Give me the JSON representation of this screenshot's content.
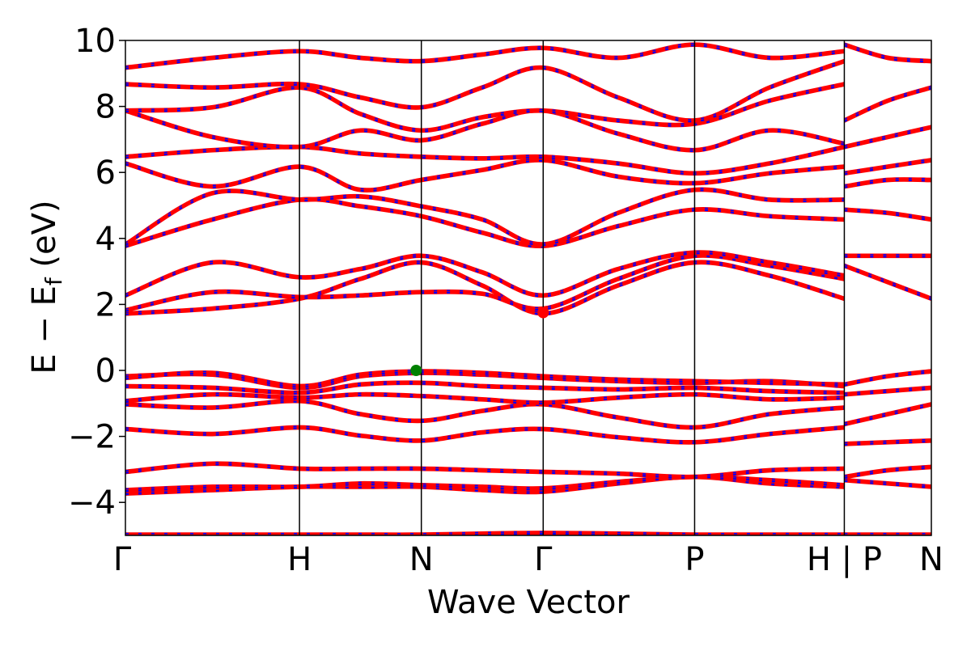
{
  "chart_data": {
    "type": "line",
    "title": "",
    "xlabel": "Wave Vector",
    "ylabel_main": "E − E",
    "ylabel_sub": "f",
    "ylabel_unit": " (eV)",
    "ylim": [
      -5,
      10
    ],
    "yticks": [
      -4,
      -2,
      0,
      2,
      4,
      6,
      8,
      10
    ],
    "ytick_labels": [
      "−4",
      "−2",
      "0",
      "2",
      "4",
      "6",
      "8",
      "10"
    ],
    "k_path": {
      "points": [
        0,
        1,
        1.7,
        2.4,
        3.27,
        4.13,
        4.63
      ],
      "labels": [
        "Γ",
        "H",
        "N",
        "Γ",
        "P",
        "H | P",
        "N"
      ],
      "segment_breaks": [
        4.13
      ]
    },
    "grid": false,
    "band_colors": {
      "line": "#ff0000",
      "overlay_dash": "#0000ff"
    },
    "markers": [
      {
        "name": "VBM",
        "x": 1.67,
        "y": 0.0,
        "color": "#008000"
      },
      {
        "name": "CBM",
        "x": 2.4,
        "y": 1.75,
        "color": "#ff0000"
      }
    ],
    "bands": [
      {
        "x": [
          0,
          0.5,
          1,
          1.35,
          1.7,
          2.05,
          2.4,
          2.83,
          3.27,
          3.7,
          4.13
        ],
        "y": [
          -4.95,
          -4.95,
          -4.95,
          -4.95,
          -4.95,
          -4.92,
          -4.9,
          -4.92,
          -4.95,
          -4.95,
          -4.95
        ]
      },
      {
        "x": [
          0,
          0.5,
          1,
          1.35,
          1.7,
          2.05,
          2.4,
          2.83,
          3.27,
          3.7,
          4.13
        ],
        "y": [
          -3.7,
          -3.6,
          -3.5,
          -3.5,
          -3.5,
          -3.6,
          -3.65,
          -3.4,
          -3.2,
          -3.4,
          -3.5
        ]
      },
      {
        "x": [
          0,
          0.5,
          1,
          1.35,
          1.7,
          2.05,
          2.4,
          2.83,
          3.27,
          3.7,
          4.13
        ],
        "y": [
          -3.6,
          -3.5,
          -3.5,
          -3.4,
          -3.45,
          -3.5,
          -3.55,
          -3.35,
          -3.2,
          -3.3,
          -3.45
        ]
      },
      {
        "x": [
          0,
          0.5,
          1,
          1.35,
          1.7,
          2.05,
          2.4,
          2.83,
          3.27,
          3.7,
          4.13
        ],
        "y": [
          -3.05,
          -2.8,
          -2.95,
          -2.95,
          -2.95,
          -3.0,
          -3.05,
          -3.1,
          -3.2,
          -3.0,
          -2.95
        ]
      },
      {
        "x": [
          0,
          0.5,
          1,
          1.35,
          1.7,
          2.05,
          2.4,
          2.83,
          3.27,
          3.7,
          4.13
        ],
        "y": [
          -1.75,
          -1.9,
          -1.7,
          -1.95,
          -2.1,
          -1.85,
          -1.75,
          -2.0,
          -2.15,
          -1.9,
          -1.7
        ]
      },
      {
        "x": [
          0,
          0.5,
          1,
          1.35,
          1.7,
          2.05,
          2.4,
          2.83,
          3.27,
          3.7,
          4.13
        ],
        "y": [
          -1.0,
          -1.1,
          -0.9,
          -1.3,
          -1.5,
          -1.2,
          -1.0,
          -1.4,
          -1.7,
          -1.3,
          -1.1
        ]
      },
      {
        "x": [
          0,
          0.5,
          1,
          1.35,
          1.7,
          2.05,
          2.4,
          2.83,
          3.27,
          3.7,
          4.13
        ],
        "y": [
          -0.9,
          -0.7,
          -0.8,
          -0.7,
          -0.75,
          -0.85,
          -0.95,
          -0.8,
          -0.7,
          -0.85,
          -0.8
        ]
      },
      {
        "x": [
          0,
          0.5,
          1,
          1.35,
          1.7,
          2.05,
          2.4,
          2.83,
          3.27,
          3.7,
          4.13
        ],
        "y": [
          -0.45,
          -0.5,
          -0.65,
          -0.4,
          -0.35,
          -0.45,
          -0.5,
          -0.55,
          -0.5,
          -0.6,
          -0.65
        ]
      },
      {
        "x": [
          0,
          0.5,
          1,
          1.35,
          1.7,
          2.05,
          2.4,
          2.83,
          3.27,
          3.7,
          4.13
        ],
        "y": [
          -0.15,
          -0.1,
          -0.5,
          -0.15,
          -0.05,
          -0.1,
          -0.2,
          -0.3,
          -0.35,
          -0.3,
          -0.45
        ]
      },
      {
        "x": [
          0,
          0.5,
          1,
          1.35,
          1.7,
          2.05,
          2.4,
          2.83,
          3.27,
          3.7,
          4.13
        ],
        "y": [
          -0.2,
          -0.05,
          -0.45,
          -0.1,
          0.0,
          -0.05,
          -0.15,
          -0.25,
          -0.3,
          -0.35,
          -0.4
        ]
      },
      {
        "x": [
          0,
          0.5,
          1,
          1.35,
          1.7,
          2.05,
          2.4,
          2.83,
          3.27,
          3.7,
          4.13
        ],
        "y": [
          1.75,
          1.9,
          2.2,
          2.8,
          3.3,
          2.6,
          1.75,
          2.6,
          3.3,
          2.9,
          2.2
        ]
      },
      {
        "x": [
          0,
          0.5,
          1,
          1.35,
          1.7,
          2.05,
          2.4,
          2.83,
          3.27,
          3.7,
          4.13
        ],
        "y": [
          1.85,
          2.4,
          2.25,
          2.3,
          2.4,
          2.35,
          1.9,
          2.8,
          3.5,
          3.2,
          2.8
        ]
      },
      {
        "x": [
          0,
          0.5,
          1,
          1.35,
          1.7,
          2.05,
          2.4,
          2.83,
          3.27,
          3.7,
          4.13
        ],
        "y": [
          2.3,
          3.3,
          2.85,
          3.1,
          3.5,
          3.0,
          2.3,
          3.1,
          3.6,
          3.3,
          2.9
        ]
      },
      {
        "x": [
          0,
          0.5,
          1,
          1.35,
          1.7,
          2.05,
          2.4,
          2.83,
          3.27,
          3.7,
          4.13
        ],
        "y": [
          3.8,
          4.6,
          5.2,
          5.0,
          4.7,
          4.2,
          3.8,
          4.4,
          4.9,
          4.7,
          4.6
        ]
      },
      {
        "x": [
          0,
          0.5,
          1,
          1.35,
          1.7,
          2.05,
          2.4,
          2.83,
          3.27,
          3.7,
          4.13
        ],
        "y": [
          3.85,
          5.4,
          5.2,
          5.3,
          5.0,
          4.6,
          3.85,
          4.8,
          5.5,
          5.2,
          5.2
        ]
      },
      {
        "x": [
          0,
          0.5,
          1,
          1.35,
          1.7,
          2.05,
          2.4,
          2.83,
          3.27,
          3.7,
          4.13
        ],
        "y": [
          6.3,
          5.6,
          6.2,
          5.5,
          5.8,
          6.1,
          6.4,
          5.9,
          5.7,
          6.0,
          6.2
        ]
      },
      {
        "x": [
          0,
          0.5,
          1,
          1.35,
          1.7,
          2.05,
          2.4,
          2.83,
          3.27,
          3.7,
          4.13
        ],
        "y": [
          6.5,
          6.7,
          6.8,
          6.6,
          6.5,
          6.45,
          6.5,
          6.3,
          6.0,
          6.3,
          6.8
        ]
      },
      {
        "x": [
          0,
          0.5,
          1,
          1.35,
          1.7,
          2.05,
          2.4,
          2.83,
          3.27,
          3.7,
          4.13
        ],
        "y": [
          7.9,
          7.1,
          6.8,
          7.3,
          7.0,
          7.5,
          7.9,
          7.2,
          6.7,
          7.3,
          6.9
        ]
      },
      {
        "x": [
          0,
          0.5,
          1,
          1.35,
          1.7,
          2.05,
          2.4,
          2.83,
          3.27,
          3.7,
          4.13
        ],
        "y": [
          7.9,
          8.0,
          8.6,
          7.8,
          7.3,
          7.7,
          7.9,
          7.6,
          7.5,
          8.2,
          8.7
        ]
      },
      {
        "x": [
          0,
          0.5,
          1,
          1.35,
          1.7,
          2.05,
          2.4,
          2.83,
          3.27,
          3.7,
          4.13
        ],
        "y": [
          8.7,
          8.6,
          8.7,
          8.3,
          8.0,
          8.6,
          9.2,
          8.3,
          7.6,
          8.6,
          9.4
        ]
      },
      {
        "x": [
          0,
          0.5,
          1,
          1.35,
          1.7,
          2.05,
          2.4,
          2.83,
          3.27,
          3.7,
          4.13
        ],
        "y": [
          9.2,
          9.5,
          9.7,
          9.5,
          9.4,
          9.6,
          9.8,
          9.5,
          9.9,
          9.5,
          9.7
        ]
      },
      {
        "x": [
          4.13,
          4.38,
          4.63
        ],
        "y": [
          -4.95,
          -4.95,
          -4.95
        ]
      },
      {
        "x": [
          4.13,
          4.38,
          4.63
        ],
        "y": [
          -3.3,
          -3.4,
          -3.5
        ]
      },
      {
        "x": [
          4.13,
          4.38,
          4.63
        ],
        "y": [
          -3.2,
          -3.0,
          -2.9
        ]
      },
      {
        "x": [
          4.13,
          4.38,
          4.63
        ],
        "y": [
          -2.2,
          -2.15,
          -2.1
        ]
      },
      {
        "x": [
          4.13,
          4.38,
          4.63
        ],
        "y": [
          -1.6,
          -1.3,
          -1.0
        ]
      },
      {
        "x": [
          4.13,
          4.38,
          4.63
        ],
        "y": [
          -0.7,
          -0.6,
          -0.5
        ]
      },
      {
        "x": [
          4.13,
          4.38,
          4.63
        ],
        "y": [
          -0.4,
          -0.15,
          0.0
        ]
      },
      {
        "x": [
          4.13,
          4.38,
          4.63
        ],
        "y": [
          3.2,
          2.7,
          2.2
        ]
      },
      {
        "x": [
          4.13,
          4.38,
          4.63
        ],
        "y": [
          3.5,
          3.5,
          3.5
        ]
      },
      {
        "x": [
          4.13,
          4.38,
          4.63
        ],
        "y": [
          4.9,
          4.8,
          4.6
        ]
      },
      {
        "x": [
          4.13,
          4.38,
          4.63
        ],
        "y": [
          5.6,
          5.8,
          5.8
        ]
      },
      {
        "x": [
          4.13,
          4.38,
          4.63
        ],
        "y": [
          6.0,
          6.2,
          6.4
        ]
      },
      {
        "x": [
          4.13,
          4.38,
          4.63
        ],
        "y": [
          6.8,
          7.1,
          7.4
        ]
      },
      {
        "x": [
          4.13,
          4.38,
          4.63
        ],
        "y": [
          7.6,
          8.2,
          8.6
        ]
      },
      {
        "x": [
          4.13,
          4.38,
          4.63
        ],
        "y": [
          9.9,
          9.5,
          9.4
        ]
      }
    ]
  }
}
